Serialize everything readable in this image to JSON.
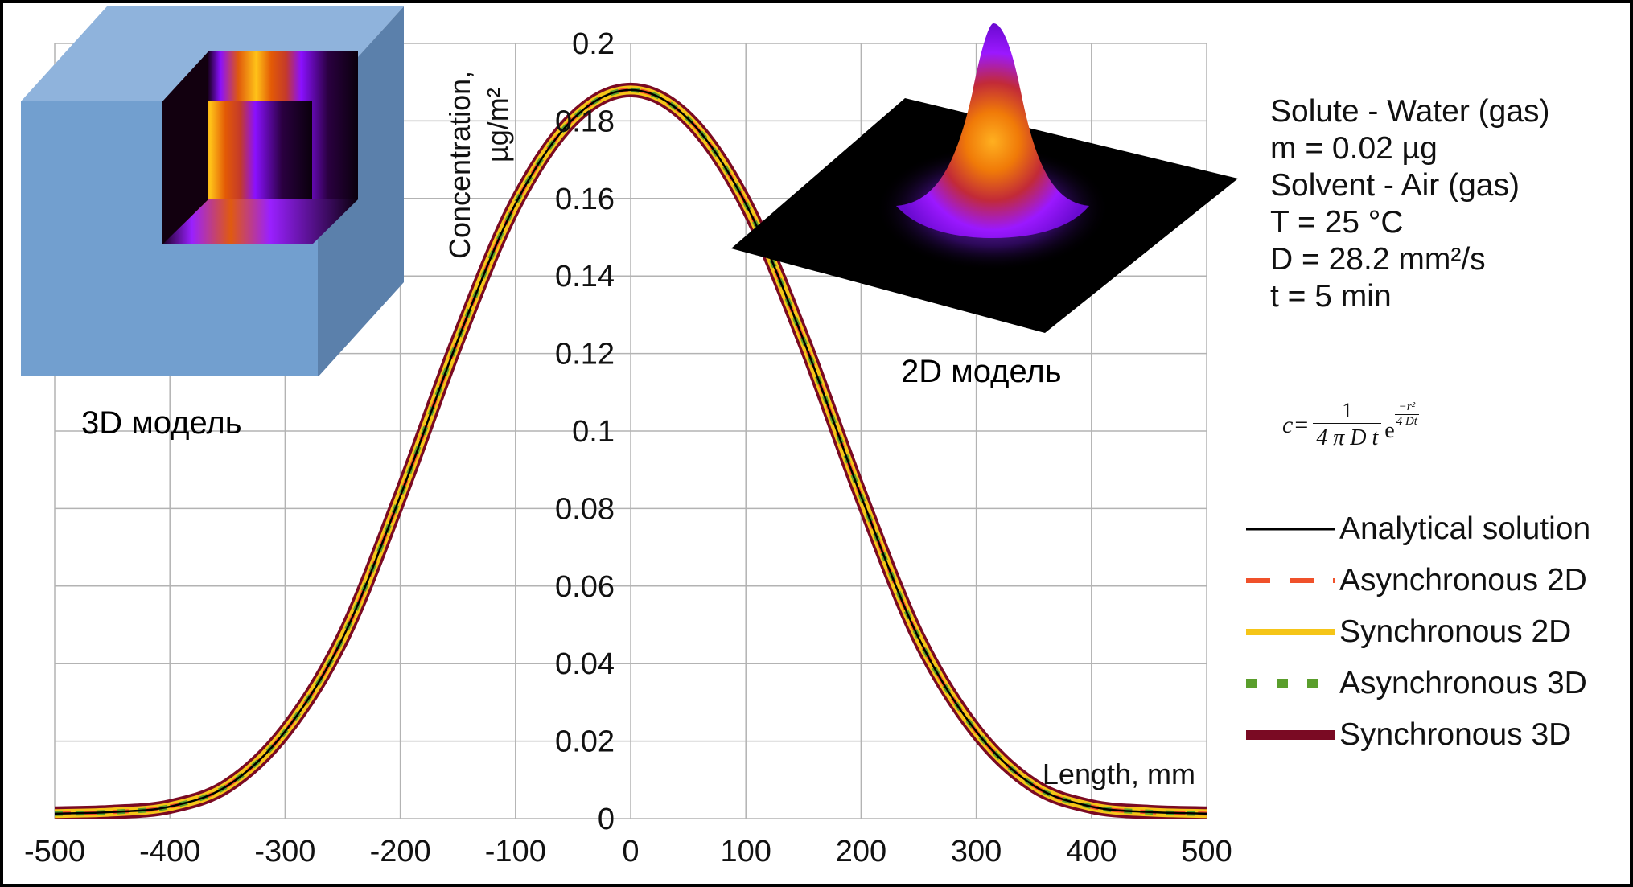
{
  "chart_data": {
    "type": "line",
    "xlabel": "Length, mm",
    "ylabel_line1": "Concentration,",
    "ylabel_line2": "µg/m²",
    "xlim": [
      -500,
      500
    ],
    "ylim": [
      0,
      0.2
    ],
    "x_ticks": [
      -500,
      -400,
      -300,
      -200,
      -100,
      0,
      100,
      200,
      300,
      400,
      500
    ],
    "y_ticks": [
      0,
      0.02,
      0.04,
      0.06,
      0.08,
      0.1,
      0.12,
      0.14,
      0.16,
      0.18,
      0.2
    ],
    "x_tick_labels": [
      "-500",
      "-400",
      "-300",
      "-200",
      "-100",
      "0",
      "100",
      "200",
      "300",
      "400",
      "500"
    ],
    "y_tick_labels": [
      "0",
      "0.02",
      "0.04",
      "0.06",
      "0.08",
      "0.1",
      "0.12",
      "0.14",
      "0.16",
      "0.18",
      "0.2"
    ],
    "grid": true,
    "x": [
      -500,
      -450,
      -400,
      -350,
      -300,
      -250,
      -200,
      -150,
      -100,
      -50,
      0,
      50,
      100,
      150,
      200,
      250,
      300,
      350,
      400,
      450,
      500
    ],
    "series": [
      {
        "name": "Analytical solution",
        "color": "#000000",
        "style": "solid-thin",
        "values": [
          0.0013,
          0.0017,
          0.0031,
          0.0085,
          0.0225,
          0.0466,
          0.0832,
          0.1235,
          0.1586,
          0.1805,
          0.188,
          0.1805,
          0.1586,
          0.1235,
          0.0832,
          0.0466,
          0.0225,
          0.0085,
          0.0031,
          0.0017,
          0.0013
        ]
      },
      {
        "name": "Asynchronous 2D",
        "color": "#f0512a",
        "style": "dashed",
        "values": [
          0.0013,
          0.0017,
          0.0031,
          0.0085,
          0.0225,
          0.0466,
          0.0832,
          0.1235,
          0.1586,
          0.1805,
          0.188,
          0.1805,
          0.1586,
          0.1235,
          0.0832,
          0.0466,
          0.0225,
          0.0085,
          0.0031,
          0.0017,
          0.0013
        ]
      },
      {
        "name": "Synchronous 2D",
        "color": "#f5c518",
        "style": "solid-wide",
        "values": [
          0.0013,
          0.0017,
          0.0031,
          0.0085,
          0.0225,
          0.0466,
          0.0832,
          0.1235,
          0.1586,
          0.1805,
          0.188,
          0.1805,
          0.1586,
          0.1235,
          0.0832,
          0.0466,
          0.0225,
          0.0085,
          0.0031,
          0.0017,
          0.0013
        ]
      },
      {
        "name": "Asynchronous 3D",
        "color": "#5a9e2c",
        "style": "dotted",
        "values": [
          0.0013,
          0.0017,
          0.0031,
          0.0085,
          0.0225,
          0.0466,
          0.0832,
          0.1235,
          0.1586,
          0.1805,
          0.188,
          0.1805,
          0.1586,
          0.1235,
          0.0832,
          0.0466,
          0.0225,
          0.0085,
          0.0031,
          0.0017,
          0.0013
        ]
      },
      {
        "name": "Synchronous 3D",
        "color": "#7a0a23",
        "style": "solid-wide",
        "values": [
          0.0013,
          0.0017,
          0.0031,
          0.0085,
          0.0225,
          0.0466,
          0.0832,
          0.1235,
          0.1586,
          0.1805,
          0.188,
          0.1805,
          0.1586,
          0.1235,
          0.0832,
          0.0466,
          0.0225,
          0.0085,
          0.0031,
          0.0017,
          0.0013
        ]
      }
    ]
  },
  "params": {
    "line1": "Solute - Water (gas)",
    "line2": "m = 0.02 µg",
    "line3": "Solvent - Air (gas)",
    "line4": "T = 25 °C",
    "line5": "D = 28.2 mm²/s",
    "line6": "t = 5 min"
  },
  "formula": {
    "lhs": "c",
    "eq": "=",
    "num": "1",
    "den": "4 π D t",
    "base": "e",
    "exp_num": "−r²",
    "exp_den": "4 Dt"
  },
  "legend": [
    "Analytical solution",
    "Asynchronous 2D",
    "Synchronous 2D",
    "Asynchronous 3D",
    "Synchronous 3D"
  ],
  "captions": {
    "model3d": "3D модель",
    "model2d": "2D модель"
  },
  "colors": {
    "panel": "#ffffff",
    "frame": "#000000",
    "grid": "#b3b3b3",
    "cube_front": "#729fcf",
    "cube_top": "#8fb3dc",
    "cube_side": "#5b80ab"
  }
}
